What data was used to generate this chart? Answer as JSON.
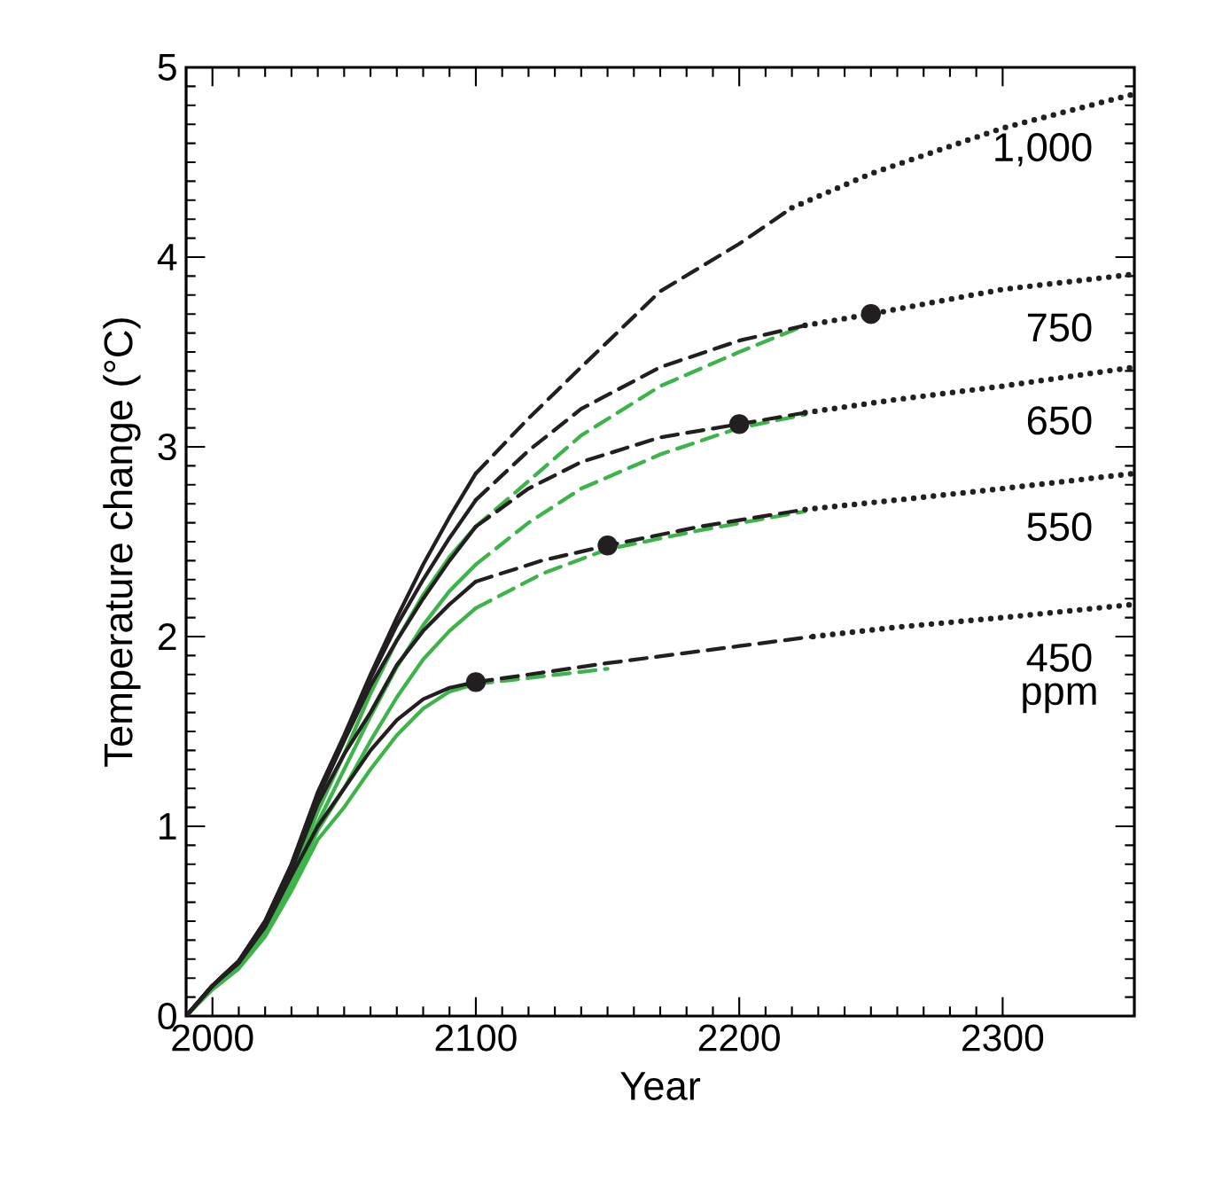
{
  "chart_data": {
    "type": "line",
    "xlabel": "Year",
    "ylabel": "Temperature change (°C)",
    "xlim": [
      1990,
      2350
    ],
    "xticks": [
      2000,
      2100,
      2200,
      2300
    ],
    "ylim": [
      0,
      5
    ],
    "yticks": [
      0,
      1,
      2,
      3,
      4,
      5
    ],
    "grid": false,
    "marker": "none",
    "series": [
      {
        "color": "#3cb44a",
        "line_style": "solid",
        "x": [
          1990,
          2000,
          2010,
          2020,
          2030,
          2040,
          2050,
          2060,
          2070,
          2080,
          2090,
          2100
        ],
        "values": [
          0,
          0.15,
          0.27,
          0.45,
          0.72,
          1.08,
          1.38,
          1.7,
          1.98,
          2.22,
          2.42,
          2.58
        ]
      },
      {
        "color": "#3cb44a",
        "line_style": "solid",
        "x": [
          1990,
          2000,
          2010,
          2020,
          2030,
          2040,
          2050,
          2060,
          2070,
          2080,
          2090,
          2100
        ],
        "values": [
          0,
          0.15,
          0.27,
          0.44,
          0.7,
          1.02,
          1.3,
          1.58,
          1.84,
          2.06,
          2.24,
          2.38
        ]
      },
      {
        "color": "#3cb44a",
        "line_style": "solid",
        "x": [
          1990,
          2000,
          2010,
          2020,
          2030,
          2040,
          2050,
          2060,
          2070,
          2080,
          2090,
          2100
        ],
        "values": [
          0,
          0.15,
          0.26,
          0.43,
          0.68,
          0.98,
          1.2,
          1.45,
          1.68,
          1.88,
          2.03,
          2.15
        ]
      },
      {
        "color": "#3cb44a",
        "line_style": "solid",
        "x": [
          1990,
          2000,
          2010,
          2020,
          2030,
          2040,
          2050,
          2060,
          2070,
          2080,
          2090,
          2100
        ],
        "values": [
          0,
          0.14,
          0.25,
          0.42,
          0.66,
          0.93,
          1.1,
          1.3,
          1.48,
          1.62,
          1.71,
          1.75
        ]
      },
      {
        "color": "#3cb44a",
        "line_style": "dashed",
        "x": [
          2100,
          2120,
          2140,
          2170,
          2200,
          2225
        ],
        "values": [
          2.58,
          2.82,
          3.06,
          3.32,
          3.5,
          3.64
        ]
      },
      {
        "color": "#3cb44a",
        "line_style": "dashed",
        "x": [
          2100,
          2120,
          2140,
          2170,
          2200,
          2225
        ],
        "values": [
          2.38,
          2.6,
          2.78,
          2.96,
          3.1,
          3.17
        ]
      },
      {
        "color": "#3cb44a",
        "line_style": "dashed",
        "x": [
          2100,
          2125,
          2150,
          2185,
          2225
        ],
        "values": [
          2.15,
          2.33,
          2.46,
          2.56,
          2.66
        ]
      },
      {
        "color": "#3cb44a",
        "line_style": "dashed",
        "x": [
          2100,
          2125,
          2150
        ],
        "values": [
          1.75,
          1.79,
          1.83
        ]
      },
      {
        "color": "#231f20",
        "line_style": "solid",
        "x": [
          1990,
          2000,
          2010,
          2020,
          2030,
          2040,
          2050,
          2060,
          2070,
          2080,
          2090,
          2100
        ],
        "values": [
          0,
          0.16,
          0.29,
          0.5,
          0.8,
          1.18,
          1.48,
          1.8,
          2.1,
          2.38,
          2.63,
          2.86
        ]
      },
      {
        "color": "#231f20",
        "line_style": "solid",
        "x": [
          1990,
          2000,
          2010,
          2020,
          2030,
          2040,
          2050,
          2060,
          2070,
          2080,
          2090,
          2100
        ],
        "values": [
          0,
          0.16,
          0.29,
          0.5,
          0.8,
          1.17,
          1.47,
          1.78,
          2.06,
          2.3,
          2.52,
          2.72
        ]
      },
      {
        "color": "#231f20",
        "line_style": "solid",
        "x": [
          1990,
          2000,
          2010,
          2020,
          2030,
          2040,
          2050,
          2060,
          2070,
          2080,
          2090,
          2100
        ],
        "values": [
          0,
          0.16,
          0.29,
          0.49,
          0.79,
          1.15,
          1.45,
          1.74,
          1.98,
          2.2,
          2.4,
          2.58
        ]
      },
      {
        "color": "#231f20",
        "line_style": "solid",
        "x": [
          1990,
          2000,
          2010,
          2020,
          2030,
          2040,
          2050,
          2060,
          2070,
          2080,
          2090,
          2100
        ],
        "values": [
          0,
          0.16,
          0.28,
          0.48,
          0.77,
          1.12,
          1.38,
          1.6,
          1.85,
          2.03,
          2.17,
          2.29
        ]
      },
      {
        "color": "#231f20",
        "line_style": "solid",
        "x": [
          1990,
          2000,
          2010,
          2020,
          2030,
          2040,
          2050,
          2060,
          2070,
          2080,
          2090,
          2100
        ],
        "values": [
          0,
          0.16,
          0.28,
          0.47,
          0.74,
          1.0,
          1.2,
          1.4,
          1.56,
          1.67,
          1.73,
          1.76
        ]
      },
      {
        "color": "#231f20",
        "line_style": "dashed",
        "x": [
          2100,
          2120,
          2140,
          2170,
          2200,
          2220
        ],
        "values": [
          2.86,
          3.15,
          3.42,
          3.82,
          4.07,
          4.26
        ]
      },
      {
        "color": "#231f20",
        "line_style": "dashed",
        "x": [
          2100,
          2120,
          2140,
          2170,
          2200,
          2225
        ],
        "values": [
          2.72,
          2.98,
          3.2,
          3.42,
          3.56,
          3.64
        ]
      },
      {
        "color": "#231f20",
        "line_style": "dashed",
        "x": [
          2100,
          2120,
          2140,
          2170,
          2200,
          2225
        ],
        "values": [
          2.58,
          2.78,
          2.92,
          3.05,
          3.12,
          3.18
        ]
      },
      {
        "color": "#231f20",
        "line_style": "dashed",
        "x": [
          2100,
          2125,
          2150,
          2185,
          2225
        ],
        "values": [
          2.29,
          2.4,
          2.48,
          2.58,
          2.67
        ]
      },
      {
        "color": "#231f20",
        "line_style": "dashed",
        "x": [
          2100,
          2150,
          2200,
          2228
        ],
        "values": [
          1.76,
          1.86,
          1.95,
          2.0
        ]
      },
      {
        "name": "1,000",
        "color": "#231f20",
        "line_style": "dotted",
        "x": [
          2220,
          2250,
          2300,
          2350
        ],
        "values": [
          4.26,
          4.44,
          4.68,
          4.86
        ]
      },
      {
        "name": "750",
        "color": "#231f20",
        "line_style": "dotted",
        "x": [
          2225,
          2250,
          2300,
          2350
        ],
        "values": [
          3.64,
          3.7,
          3.83,
          3.91
        ]
      },
      {
        "name": "650",
        "color": "#231f20",
        "line_style": "dotted",
        "x": [
          2225,
          2260,
          2300,
          2350
        ],
        "values": [
          3.18,
          3.25,
          3.32,
          3.42
        ]
      },
      {
        "name": "550",
        "color": "#231f20",
        "line_style": "dotted",
        "x": [
          2225,
          2260,
          2300,
          2350
        ],
        "values": [
          2.67,
          2.72,
          2.78,
          2.86
        ]
      },
      {
        "name": "450",
        "color": "#231f20",
        "line_style": "dotted",
        "x": [
          2228,
          2260,
          2300,
          2350
        ],
        "values": [
          2.0,
          2.05,
          2.1,
          2.17
        ]
      },
      {
        "type": "scatter",
        "marker": "circle",
        "color": "#231f20",
        "x": [
          2100,
          2150,
          2200,
          2250
        ],
        "values": [
          1.76,
          2.48,
          3.12,
          3.7
        ]
      }
    ],
    "annotations": [
      "ppm"
    ]
  }
}
